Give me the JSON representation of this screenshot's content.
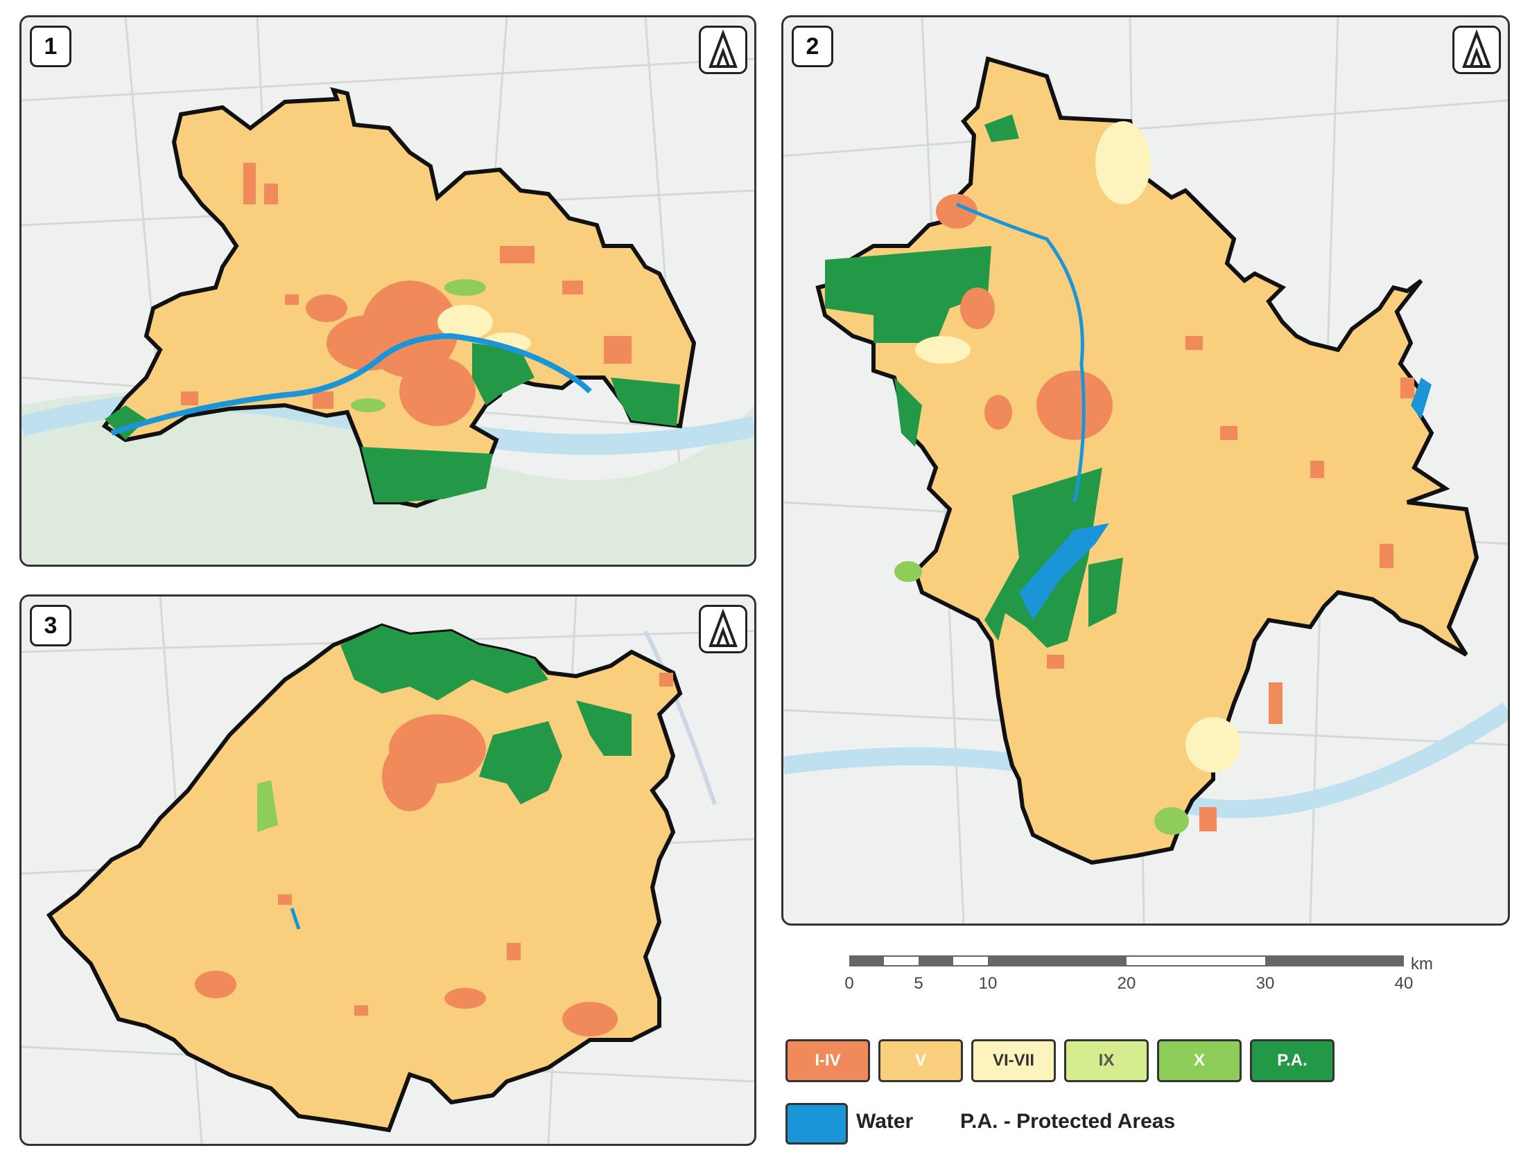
{
  "panels": [
    {
      "number": "1"
    },
    {
      "number": "2"
    },
    {
      "number": "3"
    }
  ],
  "scale_bar": {
    "unit": "km",
    "ticks": [
      "0",
      "5",
      "10",
      "20",
      "30",
      "40"
    ]
  },
  "legend": {
    "classes": [
      {
        "label": "I-IV",
        "color": "#f08a5a"
      },
      {
        "label": "V",
        "color": "#f9cf7e"
      },
      {
        "label": "VI-VII",
        "color": "#fdf4bd"
      },
      {
        "label": "IX",
        "color": "#d5ec8f"
      },
      {
        "label": "X",
        "color": "#8fcd5b"
      },
      {
        "label": "P.A.",
        "color": "#239947"
      }
    ],
    "water": {
      "label": "Water",
      "color": "#1a95d8"
    },
    "note": "P.A. - Protected Areas"
  },
  "colors": {
    "base_map": "#eef1f0",
    "river": "#bfe1ef",
    "boundary": "#111111"
  }
}
